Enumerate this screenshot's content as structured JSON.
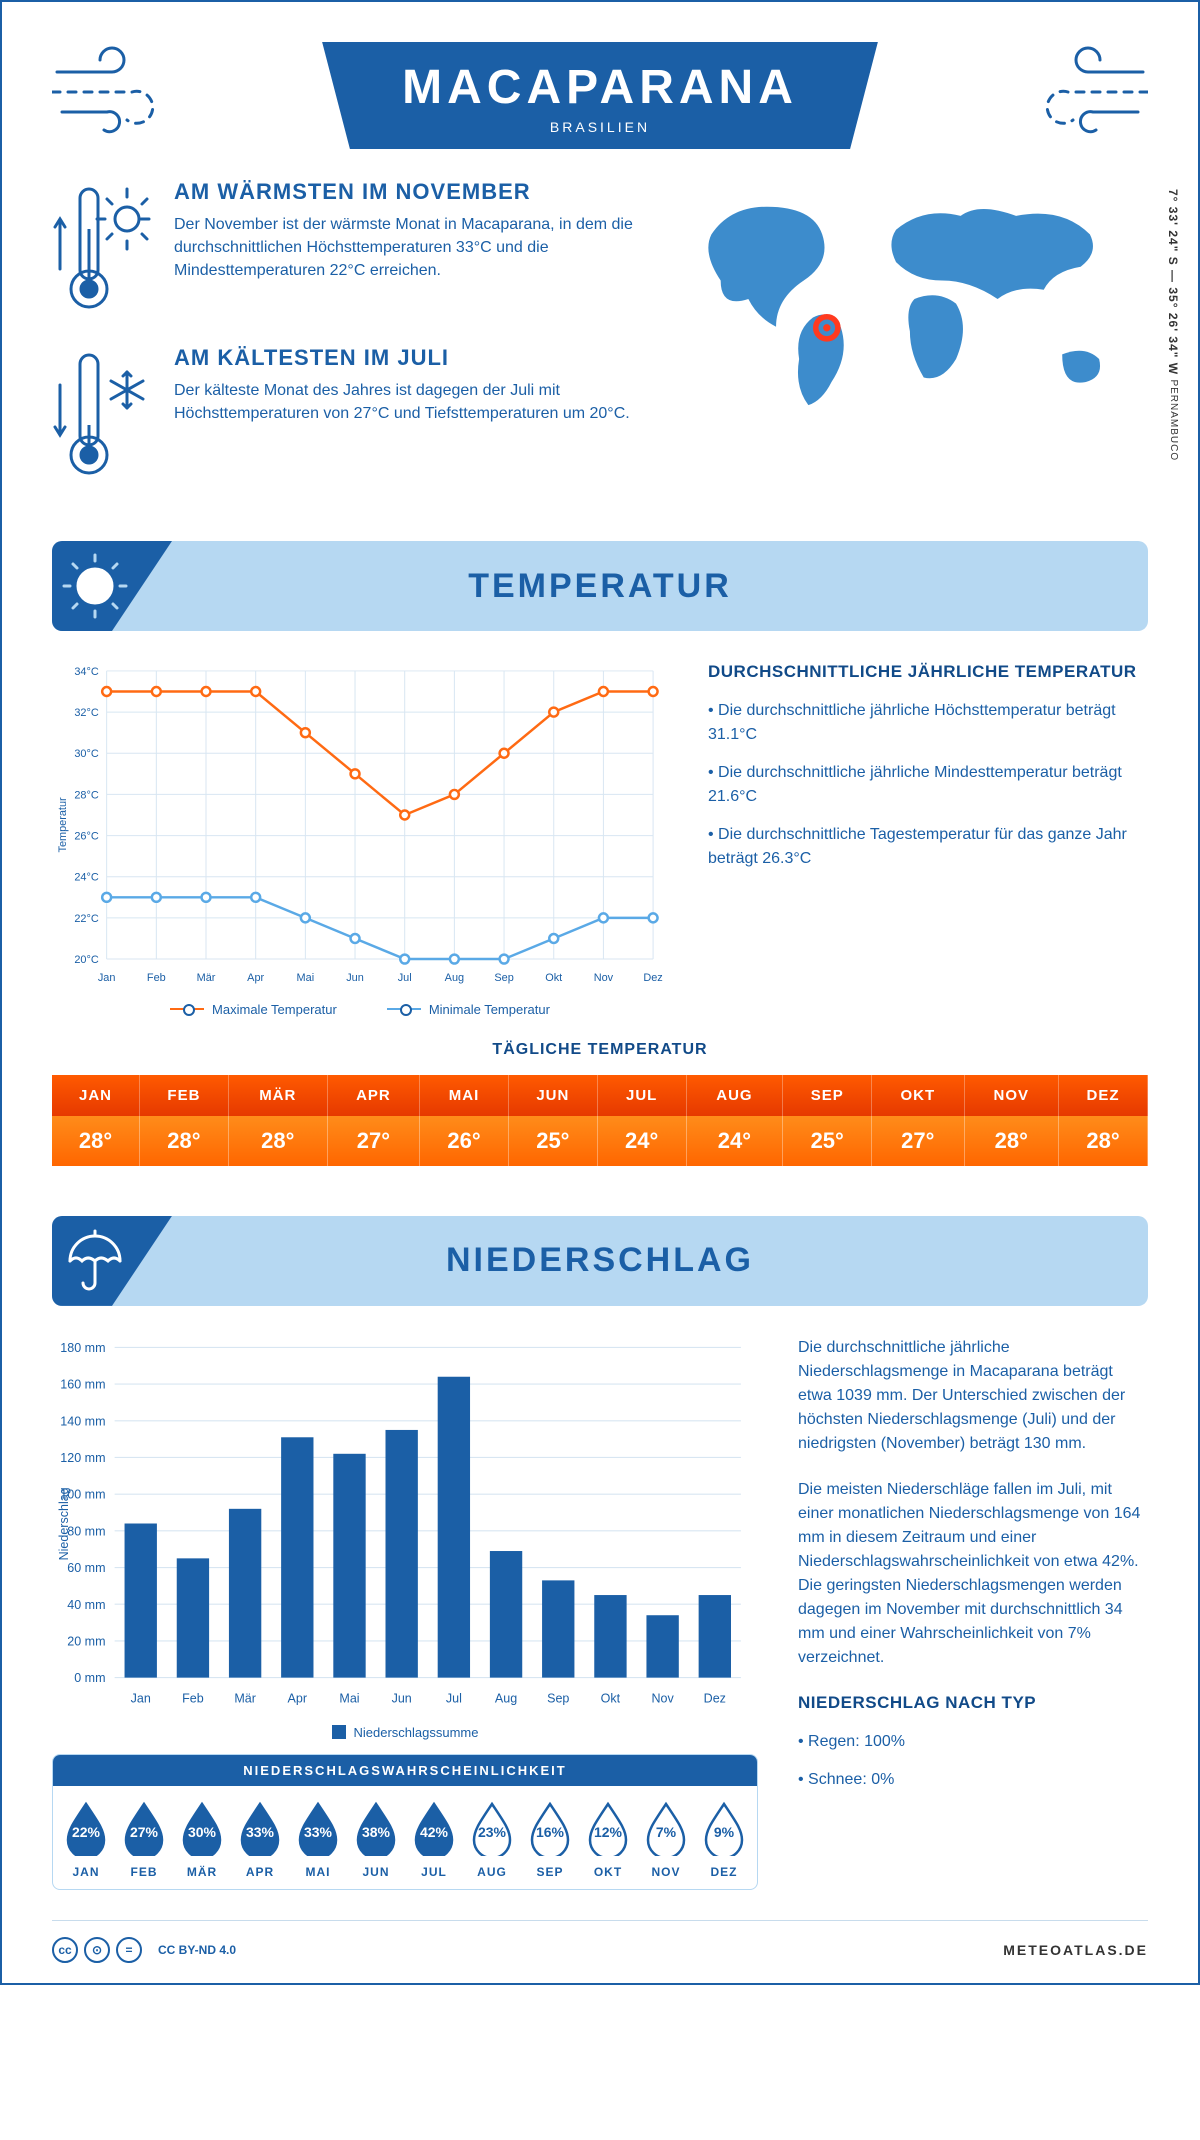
{
  "header": {
    "title": "MACAPARANA",
    "subtitle": "BRASILIEN",
    "coords": "7° 33' 24\" S — 35° 26' 34\" W",
    "region": "PERNAMBUCO"
  },
  "colors": {
    "primary": "#1b5fa6",
    "light": "#b6d8f2",
    "map": "#3d8ccc",
    "marker": "#ff3a1f",
    "max_line": "#ff6a13",
    "min_line": "#5aa9e6",
    "bar": "#1b5fa6",
    "grid": "#d8e6f2"
  },
  "facts": {
    "warm": {
      "title": "AM WÄRMSTEN IM NOVEMBER",
      "body": "Der November ist der wärmste Monat in Macaparana, in dem die durchschnittlichen Höchsttemperaturen 33°C und die Mindesttemperaturen 22°C erreichen."
    },
    "cold": {
      "title": "AM KÄLTESTEN IM JULI",
      "body": "Der kälteste Monat des Jahres ist dagegen der Juli mit Höchsttemperaturen von 27°C und Tiefsttemperaturen um 20°C."
    }
  },
  "map": {
    "marker_x": 0.33,
    "marker_y": 0.62
  },
  "months": [
    "Jan",
    "Feb",
    "Mär",
    "Apr",
    "Mai",
    "Jun",
    "Jul",
    "Aug",
    "Sep",
    "Okt",
    "Nov",
    "Dez"
  ],
  "months_upper": [
    "JAN",
    "FEB",
    "MÄR",
    "APR",
    "MAI",
    "JUN",
    "JUL",
    "AUG",
    "SEP",
    "OKT",
    "NOV",
    "DEZ"
  ],
  "temperature": {
    "banner": "TEMPERATUR",
    "y_label": "Temperatur",
    "ylim": [
      20,
      34
    ],
    "ytick_step": 2,
    "max_series": [
      33,
      33,
      33,
      33,
      31,
      29,
      27,
      28,
      30,
      32,
      33,
      33
    ],
    "min_series": [
      23,
      23,
      23,
      23,
      22,
      21,
      20,
      20,
      20,
      21,
      22,
      22
    ],
    "legend_max": "Maximale Temperatur",
    "legend_min": "Minimale Temperatur",
    "text_title": "DURCHSCHNITTLICHE JÄHRLICHE TEMPERATUR",
    "text_points": [
      "• Die durchschnittliche jährliche Höchsttemperatur beträgt 31.1°C",
      "• Die durchschnittliche jährliche Mindesttemperatur beträgt 21.6°C",
      "• Die durchschnittliche Tagestemperatur für das ganze Jahr beträgt 26.3°C"
    ],
    "daily_title": "TÄGLICHE TEMPERATUR",
    "daily_values": [
      "28°",
      "28°",
      "28°",
      "27°",
      "26°",
      "25°",
      "24°",
      "24°",
      "25°",
      "27°",
      "28°",
      "28°"
    ]
  },
  "precip": {
    "banner": "NIEDERSCHLAG",
    "y_label": "Niederschlag",
    "ylim": [
      0,
      180
    ],
    "ytick_step": 20,
    "values": [
      84,
      65,
      92,
      131,
      122,
      135,
      164,
      69,
      53,
      45,
      34,
      45
    ],
    "legend": "Niederschlagssumme",
    "prob_title": "NIEDERSCHLAGSWAHRSCHEINLICHKEIT",
    "prob_values": [
      "22%",
      "27%",
      "30%",
      "33%",
      "33%",
      "38%",
      "42%",
      "23%",
      "16%",
      "12%",
      "7%",
      "9%"
    ],
    "prob_solid": [
      true,
      true,
      true,
      true,
      true,
      true,
      true,
      false,
      false,
      false,
      false,
      false
    ],
    "text1": "Die durchschnittliche jährliche Niederschlagsmenge in Macaparana beträgt etwa 1039 mm. Der Unterschied zwischen der höchsten Niederschlagsmenge (Juli) und der niedrigsten (November) beträgt 130 mm.",
    "text2": "Die meisten Niederschläge fallen im Juli, mit einer monatlichen Niederschlagsmenge von 164 mm in diesem Zeitraum und einer Niederschlagswahrscheinlichkeit von etwa 42%. Die geringsten Niederschlagsmengen werden dagegen im November mit durchschnittlich 34 mm und einer Wahrscheinlichkeit von 7% verzeichnet.",
    "type_title": "NIEDERSCHLAG NACH TYP",
    "type_points": [
      "• Regen: 100%",
      "• Schnee: 0%"
    ]
  },
  "footer": {
    "license": "CC BY-ND 4.0",
    "site": "METEOATLAS.DE"
  }
}
